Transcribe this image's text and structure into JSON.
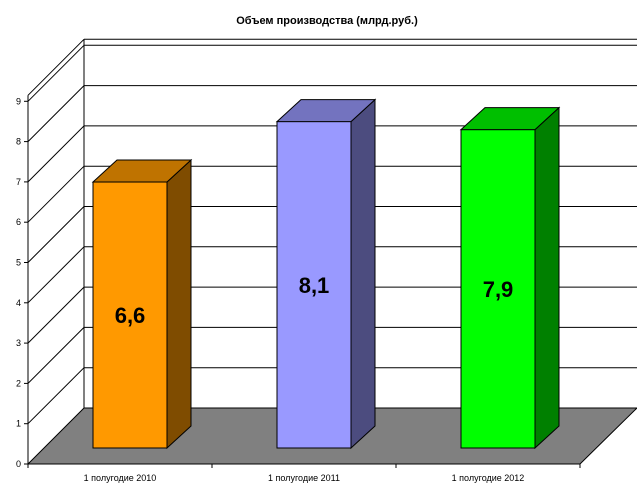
{
  "chart_data": {
    "type": "bar",
    "title": "Объем производства (млрд.руб.)",
    "xlabel": "",
    "ylabel": "",
    "ylim": [
      0,
      9
    ],
    "yticks": [
      "0",
      "1",
      "2",
      "3",
      "4",
      "5",
      "6",
      "7",
      "8",
      "9"
    ],
    "categories": [
      "1 полугодие 2010",
      "1 полугодие 2011",
      "1 полугодие 2012"
    ],
    "values": [
      6.6,
      8.1,
      7.9
    ],
    "value_labels": [
      "6,6",
      "8,1",
      "7,9"
    ],
    "colors": [
      {
        "front": "#ff9900",
        "side": "#7f4c00",
        "top": "#bf7300"
      },
      {
        "front": "#9999ff",
        "side": "#4c4c7f",
        "top": "#7373bf"
      },
      {
        "front": "#00ff00",
        "side": "#008000",
        "top": "#00bf00"
      }
    ],
    "floor_color": "#808080",
    "grid": true,
    "legend": "none"
  }
}
